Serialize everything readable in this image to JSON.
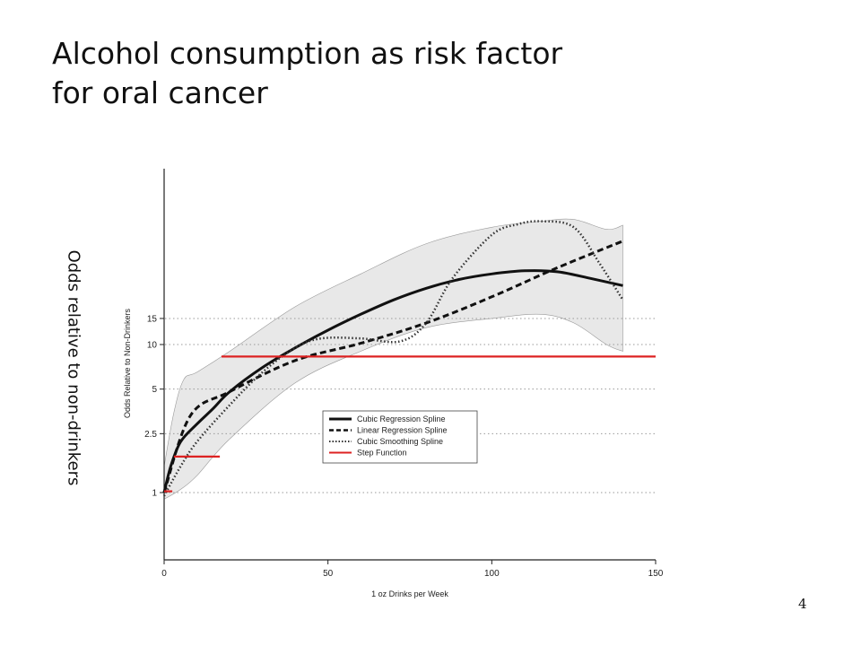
{
  "slide": {
    "title_line1": "Alcohol consumption as risk factor",
    "title_line2": "for oral cancer",
    "side_label": "Odds relative to non-drinkers",
    "page_number": "4"
  },
  "chart_data": {
    "type": "line",
    "xlabel": "1 oz Drinks per Week",
    "ylabel": "Odds Relative to Non-Drinkers",
    "xlim": [
      0,
      150
    ],
    "ylim": [
      0.5,
      100
    ],
    "y_scale": "log",
    "x_ticks": [
      0,
      50,
      100,
      150
    ],
    "y_ticks": [
      {
        "value": 1,
        "label": "1"
      },
      {
        "value": 2.5,
        "label": "2.5"
      },
      {
        "value": 5,
        "label": "5"
      },
      {
        "value": 10,
        "label": "10"
      },
      {
        "value": 15,
        "label": "15"
      }
    ],
    "grid": "dotted horizontal at y ticks",
    "legend_position": "center-right",
    "band": {
      "upper": [
        [
          0,
          1.5
        ],
        [
          3,
          3.5
        ],
        [
          6,
          5.8
        ],
        [
          10,
          6.5
        ],
        [
          20,
          9
        ],
        [
          40,
          18
        ],
        [
          60,
          30
        ],
        [
          80,
          48
        ],
        [
          100,
          62
        ],
        [
          115,
          68
        ],
        [
          125,
          70
        ],
        [
          135,
          60
        ],
        [
          140,
          64
        ]
      ],
      "lower": [
        [
          0,
          0.9
        ],
        [
          5,
          1.05
        ],
        [
          10,
          1.3
        ],
        [
          20,
          2.3
        ],
        [
          40,
          5.5
        ],
        [
          60,
          9
        ],
        [
          80,
          13
        ],
        [
          100,
          15
        ],
        [
          115,
          16
        ],
        [
          125,
          14
        ],
        [
          135,
          10
        ],
        [
          140,
          9
        ]
      ],
      "color": "#e8e8e8"
    },
    "series": [
      {
        "name": "Cubic Regression Spline",
        "style": "solid",
        "color": "#111111",
        "points": [
          [
            0,
            1
          ],
          [
            2,
            1.5
          ],
          [
            5,
            2.2
          ],
          [
            10,
            2.9
          ],
          [
            15,
            3.7
          ],
          [
            20,
            4.8
          ],
          [
            30,
            7
          ],
          [
            40,
            9.5
          ],
          [
            50,
            12.5
          ],
          [
            60,
            16
          ],
          [
            70,
            20
          ],
          [
            80,
            24
          ],
          [
            90,
            27.5
          ],
          [
            100,
            30
          ],
          [
            110,
            31.5
          ],
          [
            120,
            31
          ],
          [
            130,
            28
          ],
          [
            140,
            25
          ]
        ]
      },
      {
        "name": "Linear Regression Spline",
        "style": "dashed",
        "color": "#111111",
        "points": [
          [
            0,
            1
          ],
          [
            8,
            3.3
          ],
          [
            20,
            4.8
          ],
          [
            40,
            7.8
          ],
          [
            60,
            10.2
          ],
          [
            80,
            14
          ],
          [
            100,
            21
          ],
          [
            120,
            33
          ],
          [
            140,
            50
          ]
        ]
      },
      {
        "name": "Cubic Smoothing Spline",
        "style": "dotted",
        "color": "#333333",
        "points": [
          [
            0,
            0.95
          ],
          [
            5,
            1.5
          ],
          [
            10,
            2.2
          ],
          [
            20,
            3.9
          ],
          [
            30,
            6.5
          ],
          [
            40,
            9.5
          ],
          [
            48,
            11
          ],
          [
            60,
            11
          ],
          [
            72,
            10.5
          ],
          [
            80,
            14
          ],
          [
            88,
            28
          ],
          [
            100,
            55
          ],
          [
            108,
            65
          ],
          [
            115,
            68
          ],
          [
            125,
            62
          ],
          [
            133,
            35
          ],
          [
            140,
            20
          ]
        ]
      },
      {
        "name": "Step Function",
        "style": "solid",
        "color": "#dd2222",
        "points": [
          [
            0,
            1.02
          ],
          [
            2.5,
            1.02
          ],
          null,
          [
            3,
            1.75
          ],
          [
            17,
            1.75
          ],
          null,
          [
            17.5,
            8.3
          ],
          [
            150,
            8.3
          ]
        ]
      }
    ]
  }
}
